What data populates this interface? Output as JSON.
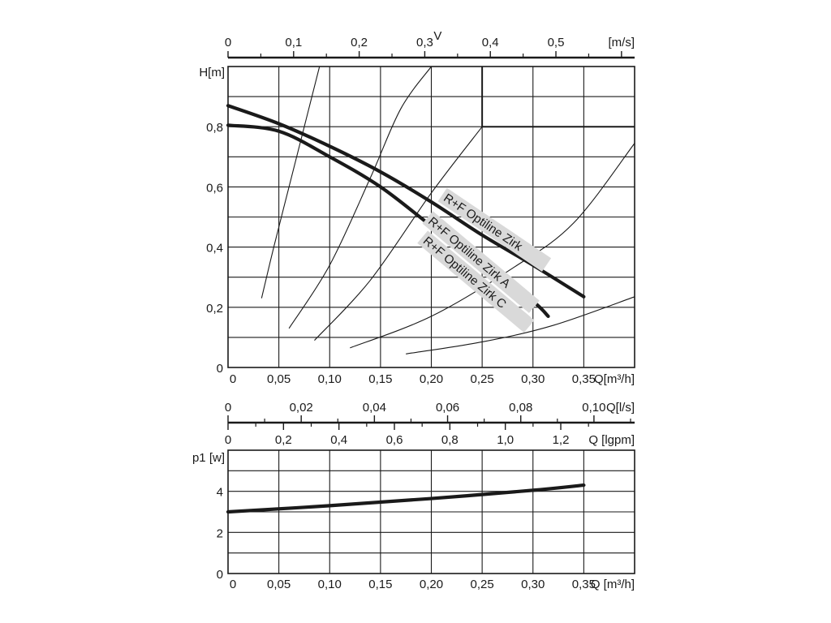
{
  "chart_data": [
    {
      "type": "line",
      "title": "",
      "xlabel": "Q[m³/h]",
      "ylabel": "H[m]",
      "xlim": [
        0,
        0.4
      ],
      "ylim": [
        0,
        1.0
      ],
      "x_ticks": [
        "0",
        "0,05",
        "0,10",
        "0,15",
        "0,20",
        "0,25",
        "0,30",
        "0,35"
      ],
      "y_ticks": [
        "0",
        "0,2",
        "0,4",
        "0,6",
        "0,8"
      ],
      "top_axis": {
        "label": "[m/s]",
        "symbol": "V",
        "ticks": [
          "0",
          "0,1",
          "0,2",
          "0,3",
          "0,4",
          "0,5"
        ]
      },
      "grid": true,
      "series": [
        {
          "name": "R+F Optiline Zirk",
          "x": [
            0,
            0.05,
            0.1,
            0.15,
            0.2,
            0.25,
            0.3,
            0.35
          ],
          "y": [
            0.87,
            0.81,
            0.735,
            0.65,
            0.55,
            0.44,
            0.34,
            0.235
          ]
        },
        {
          "name": "R+F Optiline Zirk A",
          "x": [
            0,
            0.05,
            0.1,
            0.15,
            0.2,
            0.25,
            0.3
          ],
          "y": [
            0.805,
            0.785,
            0.7,
            0.6,
            0.47,
            0.34,
            0.215
          ]
        },
        {
          "name": "R+F Optiline Zirk C",
          "x": [
            0.2,
            0.25,
            0.3,
            0.315
          ],
          "y": [
            0.47,
            0.35,
            0.22,
            0.17
          ]
        }
      ],
      "system_curves": [
        {
          "x": [
            0.033,
            0.045,
            0.06,
            0.075,
            0.09
          ],
          "y": [
            0.23,
            0.4,
            0.6,
            0.8,
            1.0
          ]
        },
        {
          "x": [
            0.06,
            0.1,
            0.14,
            0.17,
            0.2
          ],
          "y": [
            0.13,
            0.34,
            0.63,
            0.86,
            1.0
          ]
        },
        {
          "x": [
            0.085,
            0.14,
            0.2,
            0.25
          ],
          "y": [
            0.09,
            0.29,
            0.58,
            0.8
          ]
        },
        {
          "x": [
            0.12,
            0.2,
            0.28,
            0.34,
            0.4
          ],
          "y": [
            0.065,
            0.17,
            0.33,
            0.48,
            0.745
          ]
        },
        {
          "x": [
            0.175,
            0.25,
            0.32,
            0.4
          ],
          "y": [
            0.045,
            0.085,
            0.14,
            0.235
          ]
        }
      ]
    },
    {
      "type": "line",
      "title": "",
      "xlabel": "Q [m³/h]",
      "ylabel": "p1 [w]",
      "xlim": [
        0,
        0.4
      ],
      "ylim": [
        0,
        6
      ],
      "x_ticks": [
        "0",
        "0,05",
        "0,10",
        "0,15",
        "0,20",
        "0,25",
        "0,30",
        "0,35"
      ],
      "y_ticks": [
        "0",
        "2",
        "4"
      ],
      "grid": true,
      "series": [
        {
          "name": "",
          "x": [
            0,
            0.1,
            0.2,
            0.3,
            0.35
          ],
          "y": [
            3.0,
            3.3,
            3.65,
            4.05,
            4.3
          ]
        }
      ]
    }
  ],
  "flow_axes": {
    "ls": {
      "unit": "Q[l/s]",
      "ticks": [
        "0",
        "0,02",
        "0,04",
        "0,06",
        "0,08",
        "0,10"
      ]
    },
    "igpm": {
      "unit": "Q [lgpm]",
      "ticks": [
        "0",
        "0,2",
        "0,4",
        "0,6",
        "0,8",
        "1,0",
        "1,2"
      ]
    }
  },
  "colors": {
    "ink": "#1a1a1a",
    "label_bg": "#d9d9d9"
  }
}
